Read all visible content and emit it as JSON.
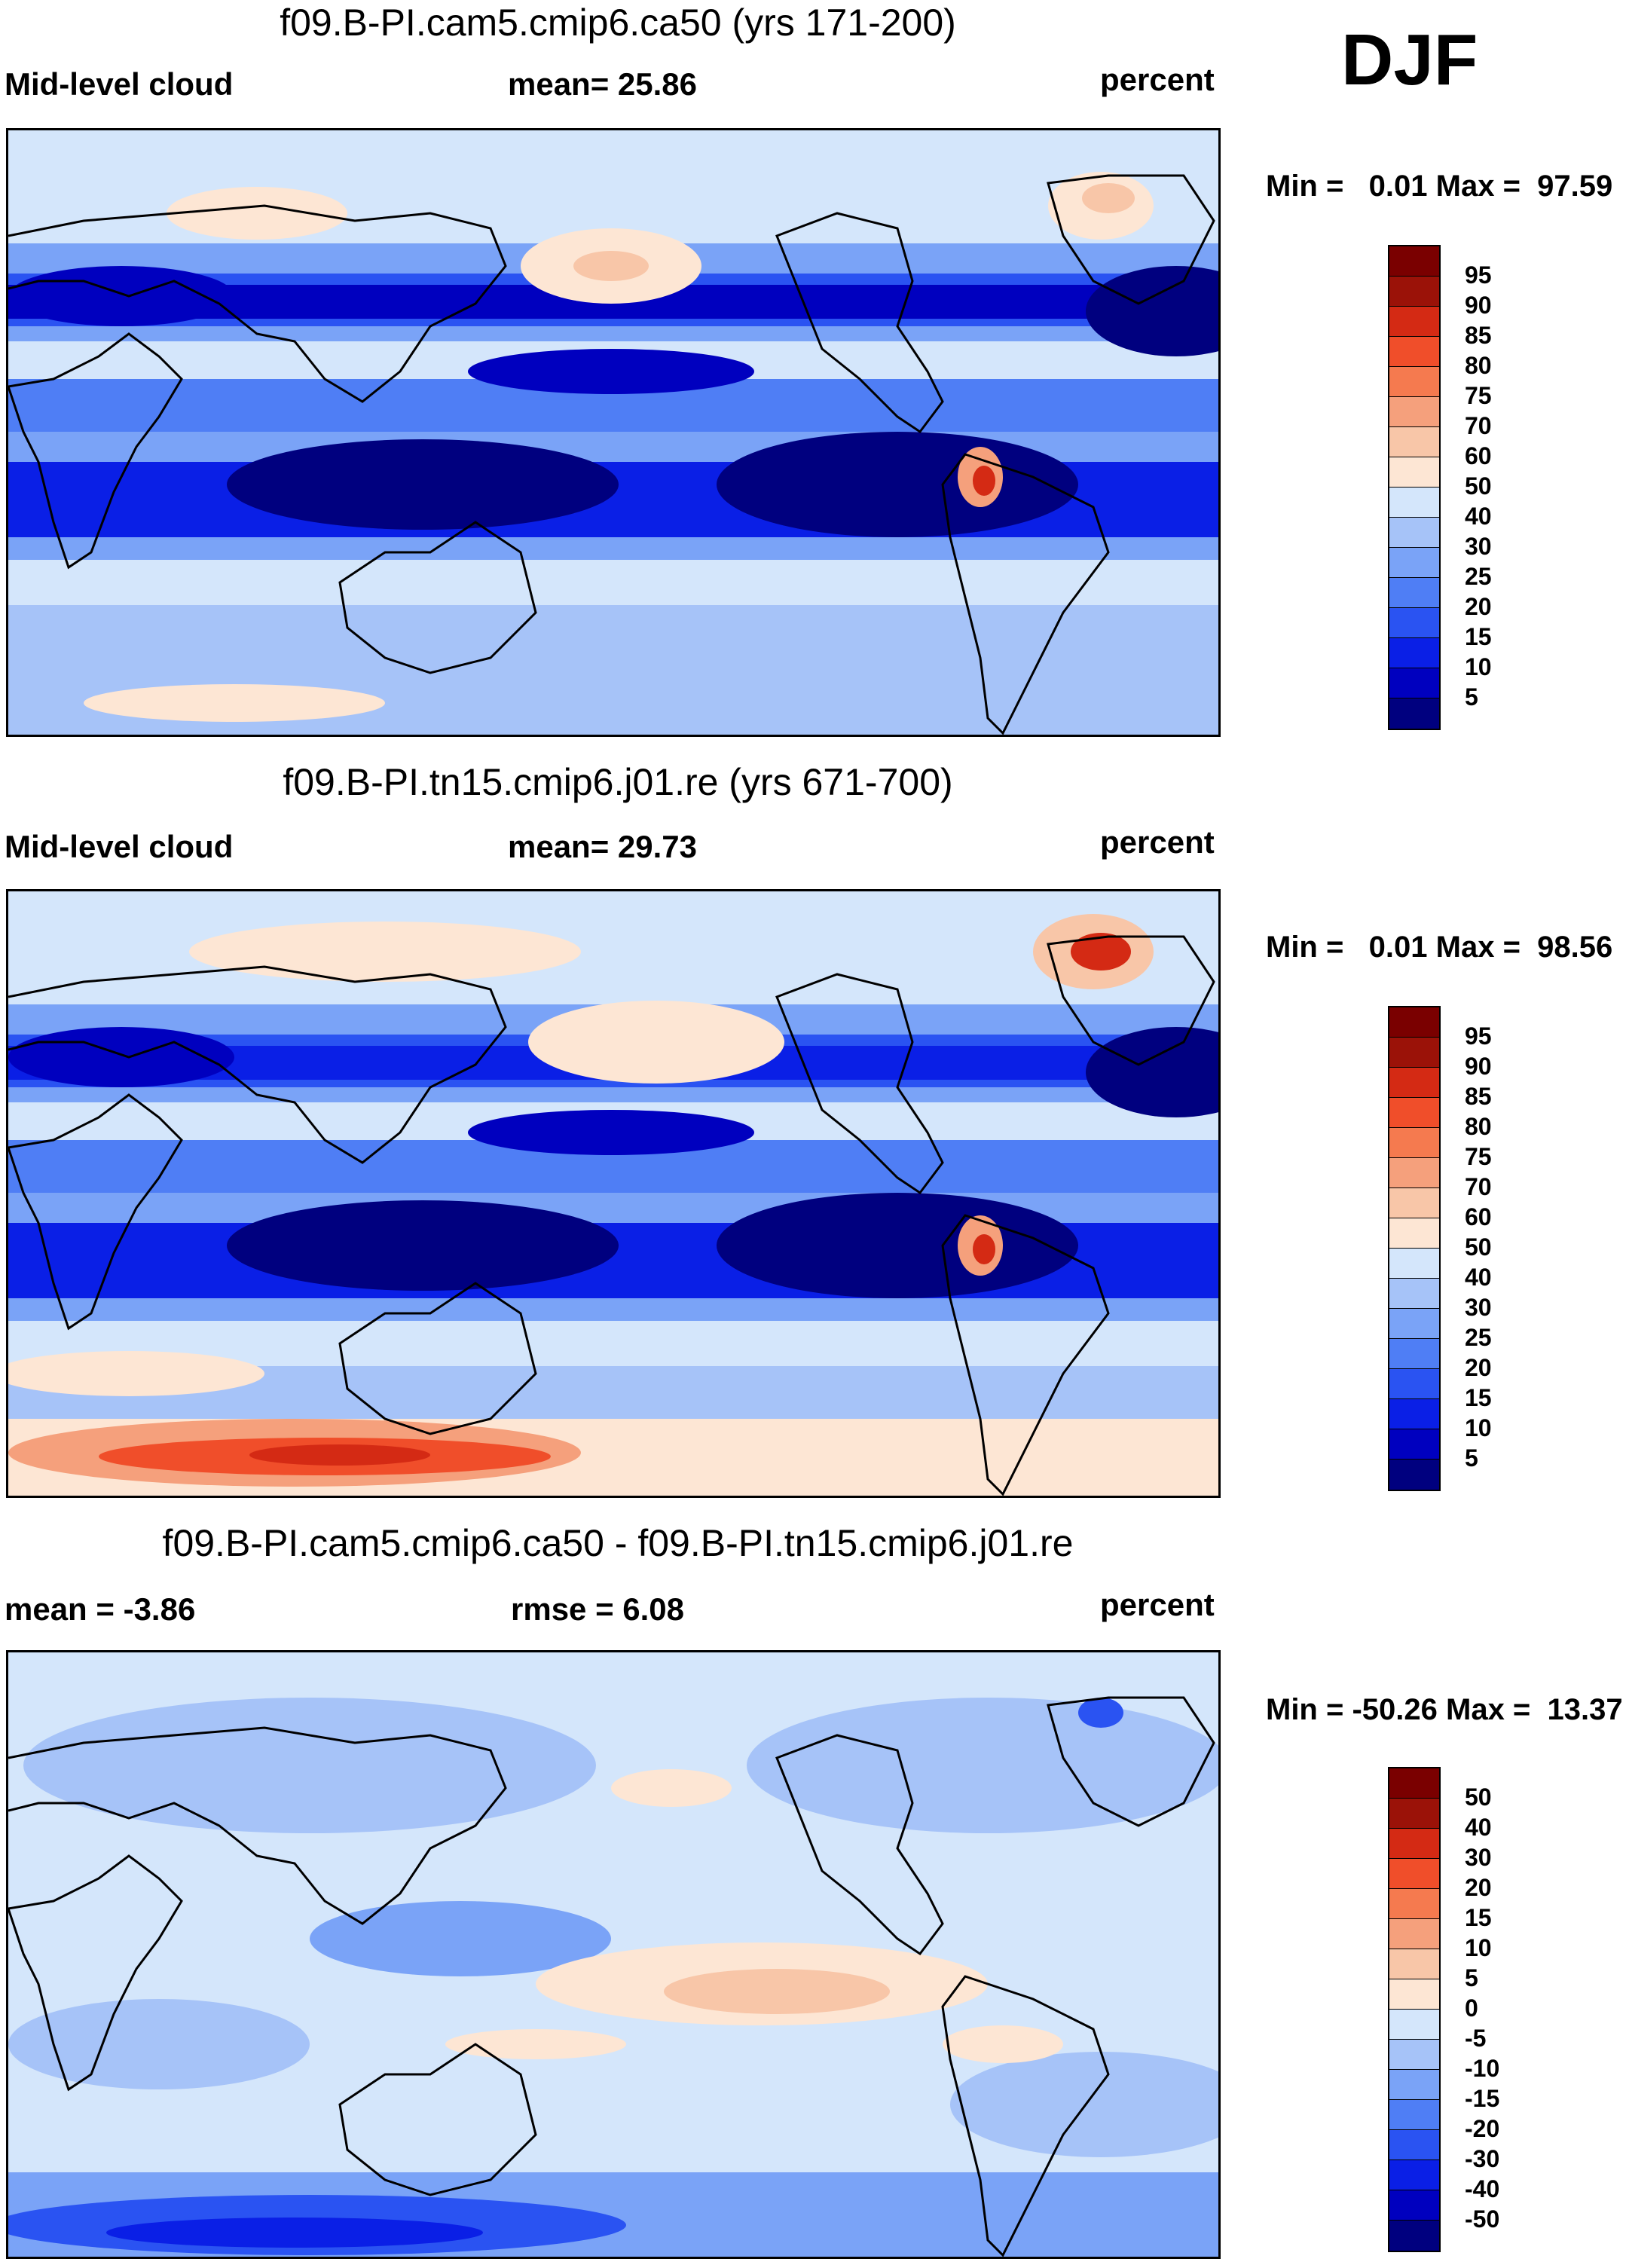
{
  "season": "DJF",
  "units": "percent",
  "colors": {
    "blues": [
      "#00007f",
      "#0000bf",
      "#0a1fe6",
      "#2a53f2",
      "#4f7ef5",
      "#7aa3f7",
      "#a6c3f8",
      "#d4e6fb"
    ],
    "reds": [
      "#fde6d4",
      "#f8c6a8",
      "#f5a07c",
      "#f57a4f",
      "#f04e2a",
      "#d42a14",
      "#9b1208",
      "#7a0000"
    ],
    "coast": "#000000",
    "background": "#cfe3fb"
  },
  "chart_data": [
    {
      "type": "heatmap",
      "title": "f09.B-PI.cam5.cmip6.ca50 (yrs 171-200)",
      "left_label": "Mid-level cloud",
      "stat_label": "mean=  25.86",
      "mean": 25.86,
      "units_label": "percent",
      "min_label": "Min =   0.01",
      "max_label": "Max =  97.59",
      "min": 0.01,
      "max": 97.59,
      "colorbar_levels": [
        "95",
        "90",
        "85",
        "80",
        "75",
        "70",
        "60",
        "50",
        "40",
        "30",
        "25",
        "20",
        "15",
        "10",
        "5"
      ]
    },
    {
      "type": "heatmap",
      "title": "f09.B-PI.tn15.cmip6.j01.re (yrs 671-700)",
      "left_label": "Mid-level cloud",
      "stat_label": "mean=  29.73",
      "mean": 29.73,
      "units_label": "percent",
      "min_label": "Min =   0.01",
      "max_label": "Max =  98.56",
      "min": 0.01,
      "max": 98.56,
      "colorbar_levels": [
        "95",
        "90",
        "85",
        "80",
        "75",
        "70",
        "60",
        "50",
        "40",
        "30",
        "25",
        "20",
        "15",
        "10",
        "5"
      ]
    },
    {
      "type": "heatmap",
      "title": "f09.B-PI.cam5.cmip6.ca50 - f09.B-PI.tn15.cmip6.j01.re",
      "left_label": "mean =  -3.86",
      "stat_label": "rmse =   6.08",
      "mean": -3.86,
      "rmse": 6.08,
      "units_label": "percent",
      "min_label": "Min = -50.26",
      "max_label": "Max =  13.37",
      "min": -50.26,
      "max": 13.37,
      "colorbar_levels": [
        "50",
        "40",
        "30",
        "20",
        "15",
        "10",
        "5",
        "0",
        "-5",
        "-10",
        "-15",
        "-20",
        "-30",
        "-40",
        "-50"
      ]
    }
  ]
}
